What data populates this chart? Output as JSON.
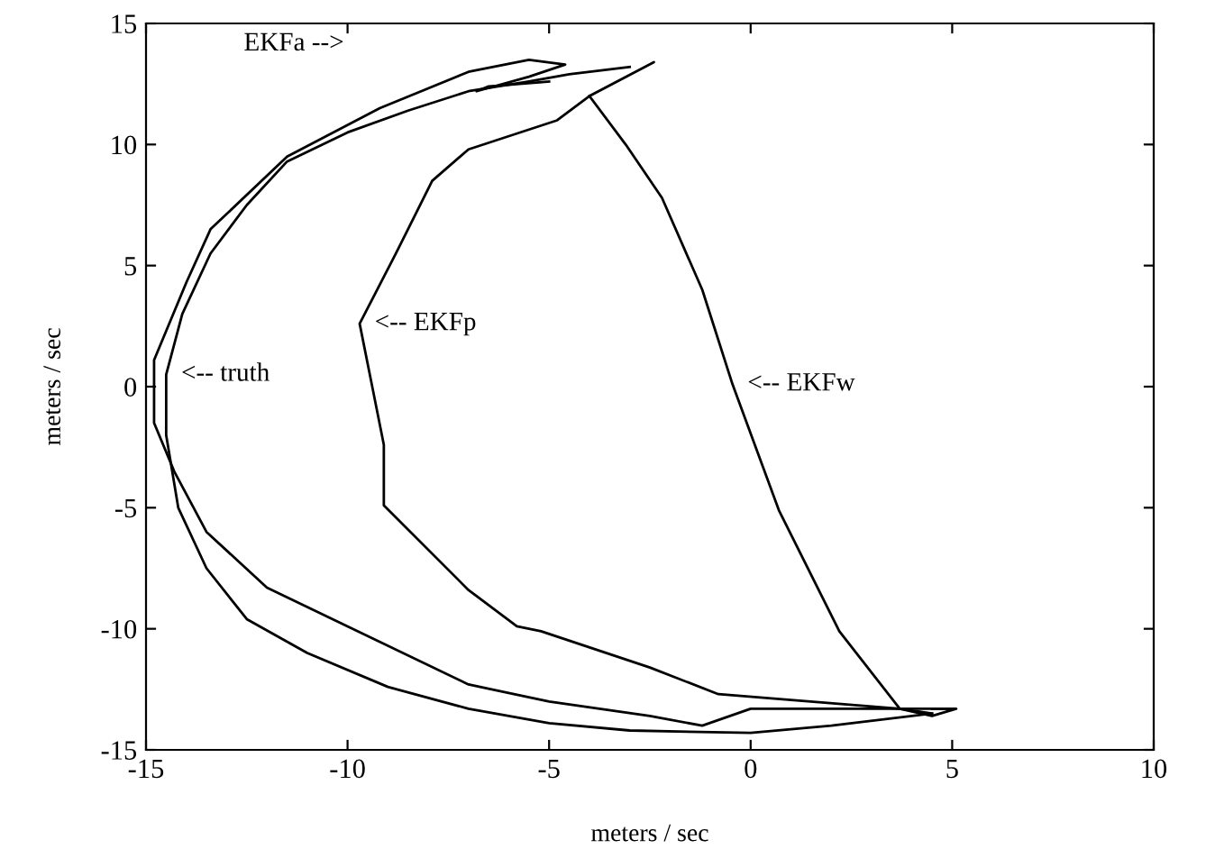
{
  "chart_data": {
    "type": "line",
    "xlabel": "meters / sec",
    "ylabel": "meters / sec",
    "xlim": [
      -15,
      10
    ],
    "ylim": [
      -15,
      15
    ],
    "xticks": [
      -15,
      -10,
      -5,
      0,
      5,
      10
    ],
    "yticks": [
      -15,
      -10,
      -5,
      0,
      5,
      10,
      15
    ],
    "grid": false,
    "marker": "none",
    "line_style": "solid",
    "series": [
      {
        "color": "#000000",
        "x": [
          4.5,
          2,
          0,
          -3,
          -5,
          -7,
          -9,
          -11,
          -12.5,
          -13.5,
          -14.2,
          -14.5,
          -14.5,
          -14.1,
          -13.4,
          -12.5,
          -11.5,
          -10,
          -8.5,
          -7,
          -5.5,
          -4.5,
          -3
        ],
        "values": [
          -13.5,
          -14.0,
          -14.3,
          -14.2,
          -13.9,
          -13.3,
          -12.4,
          -11.0,
          -9.6,
          -7.5,
          -5,
          -2,
          0.5,
          3,
          5.5,
          7.5,
          9.3,
          10.5,
          11.4,
          12.2,
          12.6,
          12.9,
          13.2
        ]
      },
      {
        "color": "#000000",
        "x": [
          5,
          3.7,
          0,
          -1.2,
          -2.5,
          -5,
          -7,
          -10,
          -12,
          -13.5,
          -14.3,
          -14.8,
          -14.8,
          -14.0,
          -13.4,
          -11.5,
          -9.2,
          -7.0,
          -5.5,
          -4.6,
          -5.5,
          -6.8,
          -6.5,
          -5
        ],
        "values": [
          -13.3,
          -13.3,
          -13.3,
          -14.0,
          -13.6,
          -13.0,
          -12.3,
          -9.9,
          -8.3,
          -6.0,
          -3.5,
          -1.5,
          1.1,
          4.3,
          6.5,
          9.5,
          11.5,
          13.0,
          13.5,
          13.3,
          12.8,
          12.2,
          12.4,
          12.6
        ]
      },
      {
        "color": "#000000",
        "x": [
          4.5,
          3.7,
          -0.8,
          -2.5,
          -5.2,
          -5.8,
          -7,
          -9.1,
          -9.1,
          -9.4,
          -9.7,
          -8.8,
          -7.9,
          -7.0,
          -4.8,
          -4.0,
          -2.4,
          -4.0
        ],
        "values": [
          -13.5,
          -13.3,
          -12.7,
          -11.6,
          -10.1,
          -9.9,
          -8.4,
          -4.9,
          -2.4,
          0.1,
          2.6,
          5.5,
          8.5,
          9.8,
          11.0,
          12.0,
          13.4,
          12.0
        ]
      },
      {
        "color": "#000000",
        "x": [
          -4.0,
          -3.1,
          -2.2,
          -1.2,
          -0.45,
          0.7,
          2.2,
          3.7,
          4.5,
          5.1,
          4.5
        ],
        "values": [
          12.0,
          10.0,
          7.8,
          4.0,
          0.1,
          -5.1,
          -10.1,
          -13.3,
          -13.6,
          -13.3,
          -13.3
        ]
      }
    ],
    "annotations": [
      "EKFa -->",
      {
        "text": "<-- truth",
        "x": -14.5,
        "y": 0.5
      },
      {
        "text": "<-- EKFp",
        "x": -9.7,
        "y": 2.6
      },
      {
        "text": "<-- EKFw",
        "x": -0.45,
        "y": 0.1
      }
    ]
  }
}
